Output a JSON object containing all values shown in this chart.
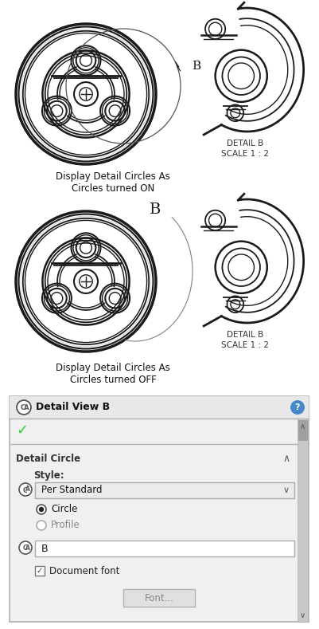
{
  "bg_color": "#ffffff",
  "text_on_label": "Display Detail Circles As\nCircles turned ON",
  "text_off_label": "Display Detail Circles As\nCircles turned OFF",
  "detail_b_text": "DETAIL B\nSCALE 1 : 2",
  "panel_title": "Detail View B",
  "style_label": "Style:",
  "dropdown_text": "Per Standard",
  "radio_circle_text": "Circle",
  "radio_profile_text": "Profile",
  "label_b_text": "B",
  "checkbox_text": "Document font",
  "font_btn_text": "Font...",
  "detail_circle_label": "Detail Circle",
  "dark": "#1a1a1a",
  "gray": "#888888",
  "lgray": "#bbbbbb",
  "panel_bg": "#f0f0f0",
  "header_bg": "#e8e8e8",
  "scroll_bg": "#c8c8c8",
  "scroll_handle": "#a0a0a0",
  "green_check": "#2ecc40",
  "blue_q": "#4488cc",
  "white": "#ffffff"
}
